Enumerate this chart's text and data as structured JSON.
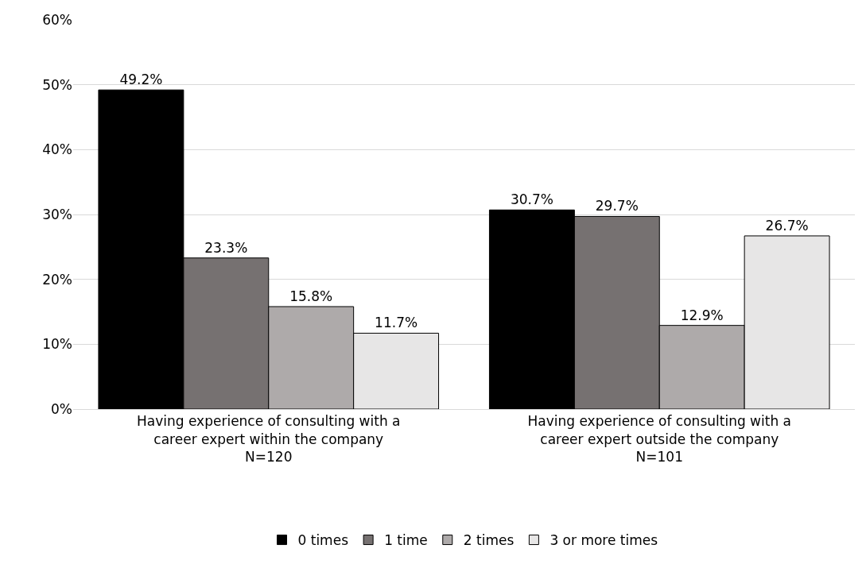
{
  "chart_data": {
    "type": "bar",
    "categories": [
      "Having experience of consulting with a\ncareer expert within the company\nN=120",
      "Having experience of consulting with a\ncareer expert outside the company\nN=101"
    ],
    "series": [
      {
        "name": "0 times",
        "color": "#000000",
        "values": [
          49.2,
          30.7
        ],
        "value_labels": [
          "49.2%",
          "30.7%"
        ]
      },
      {
        "name": "1 time",
        "color": "#767171",
        "values": [
          23.3,
          29.7
        ],
        "value_labels": [
          "23.3%",
          "29.7%"
        ]
      },
      {
        "name": "2 times",
        "color": "#aeaaaa",
        "values": [
          15.8,
          12.9
        ],
        "value_labels": [
          "15.8%",
          "12.9%"
        ]
      },
      {
        "name": "3 or more times",
        "color": "#e7e6e6",
        "values": [
          11.7,
          26.7
        ],
        "value_labels": [
          "11.7%",
          "26.7%"
        ]
      }
    ],
    "ylim": [
      0,
      60
    ],
    "yticks": [
      {
        "value": 0,
        "label": "0%"
      },
      {
        "value": 10,
        "label": "10%"
      },
      {
        "value": 20,
        "label": "20%"
      },
      {
        "value": 30,
        "label": "30%"
      },
      {
        "value": 40,
        "label": "40%"
      },
      {
        "value": 50,
        "label": "50%"
      },
      {
        "value": 60,
        "label": "60%"
      }
    ],
    "grid": "y",
    "legend": "bottom"
  }
}
